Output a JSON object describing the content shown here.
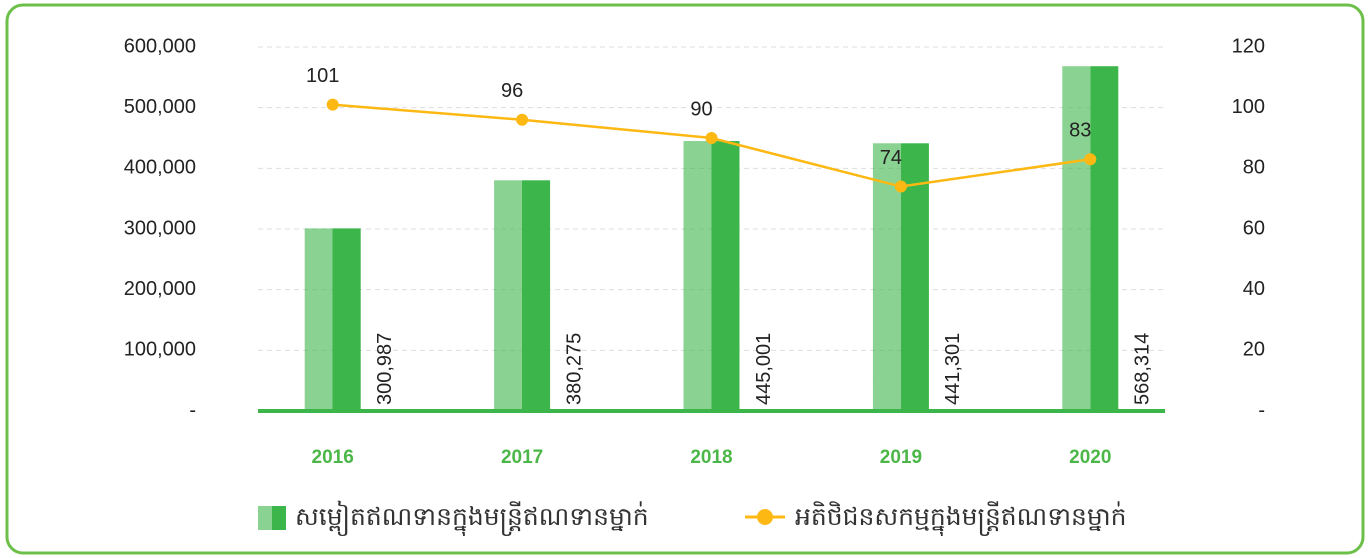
{
  "chart_data": {
    "type": "bar-line",
    "categories": [
      "2016",
      "2017",
      "2018",
      "2019",
      "2020"
    ],
    "series": [
      {
        "name": "សម្ពៀតឥណទានក្នុងមន្ត្រីឥណទានម្នាក់",
        "type": "bar",
        "color": "#3cb54a",
        "values": [
          300987,
          380275,
          445001,
          441301,
          568314
        ],
        "value_labels": [
          "300,987",
          "380,275",
          "445,001",
          "441,301",
          "568,314"
        ]
      },
      {
        "name": "អតិថិជនសកម្មក្នុងមន្ត្រីឥណទានម្នាក់",
        "type": "line",
        "axis": "y2",
        "color": "#fdb813",
        "values": [
          101,
          96,
          90,
          74,
          83
        ]
      }
    ],
    "ylim": [
      0,
      600000
    ],
    "yticks": [
      {
        "value": 0,
        "label": "-"
      },
      {
        "value": 100000,
        "label": "100,000"
      },
      {
        "value": 200000,
        "label": "200,000"
      },
      {
        "value": 300000,
        "label": "300,000"
      },
      {
        "value": 400000,
        "label": "400,000"
      },
      {
        "value": 500000,
        "label": "500,000"
      },
      {
        "value": 600000,
        "label": "600,000"
      }
    ],
    "y2lim": [
      0,
      120
    ],
    "y2ticks": [
      {
        "value": 0,
        "label": "-"
      },
      20,
      40,
      60,
      80,
      100,
      120
    ],
    "grid": true,
    "legend": "bottom"
  }
}
